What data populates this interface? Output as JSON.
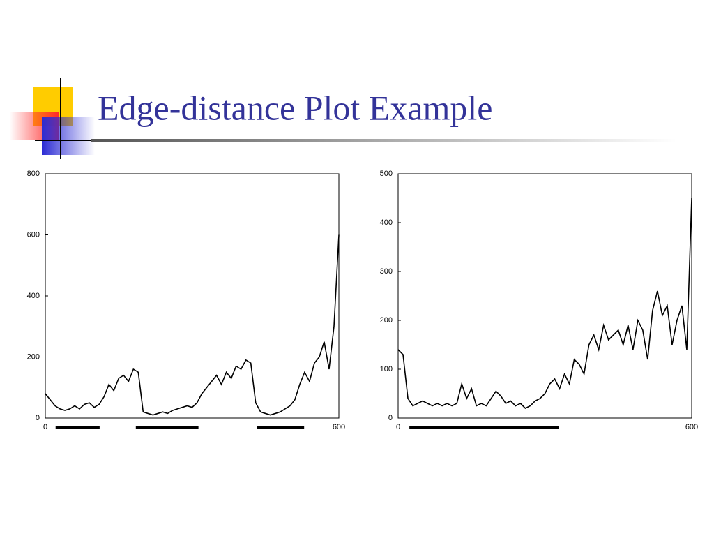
{
  "title": "Edge-distance Plot Example",
  "chart_data": [
    {
      "type": "line",
      "color": "#000000",
      "xlim": [
        0,
        600
      ],
      "xticks": [
        0,
        600
      ],
      "ylim": [
        0,
        800
      ],
      "yticks": [
        0,
        200,
        400,
        600,
        800
      ],
      "x": [
        0,
        10,
        20,
        30,
        40,
        50,
        60,
        70,
        80,
        90,
        100,
        110,
        120,
        130,
        140,
        150,
        160,
        170,
        180,
        190,
        200,
        210,
        220,
        230,
        240,
        250,
        260,
        270,
        280,
        290,
        300,
        310,
        320,
        330,
        340,
        350,
        360,
        370,
        380,
        390,
        400,
        410,
        420,
        430,
        440,
        450,
        460,
        470,
        480,
        490,
        500,
        510,
        520,
        530,
        540,
        550,
        560,
        570,
        580,
        590,
        600
      ],
      "values": [
        80,
        60,
        40,
        30,
        25,
        30,
        40,
        30,
        45,
        50,
        35,
        45,
        70,
        110,
        90,
        130,
        140,
        120,
        160,
        150,
        20,
        15,
        10,
        15,
        20,
        15,
        25,
        30,
        35,
        40,
        35,
        50,
        80,
        100,
        120,
        140,
        110,
        150,
        130,
        170,
        160,
        190,
        180,
        50,
        20,
        15,
        10,
        15,
        20,
        30,
        40,
        60,
        110,
        150,
        120,
        180,
        200,
        250,
        160,
        300,
        600
      ],
      "ranges": [
        [
          21,
          111
        ],
        [
          185,
          313
        ],
        [
          432,
          529
        ]
      ]
    },
    {
      "type": "line",
      "color": "#000000",
      "xlim": [
        0,
        600
      ],
      "xticks": [
        0,
        600
      ],
      "ylim": [
        0,
        500
      ],
      "yticks": [
        0,
        100,
        200,
        300,
        400,
        500
      ],
      "x": [
        0,
        10,
        20,
        30,
        40,
        50,
        60,
        70,
        80,
        90,
        100,
        110,
        120,
        130,
        140,
        150,
        160,
        170,
        180,
        190,
        200,
        210,
        220,
        230,
        240,
        250,
        260,
        270,
        280,
        290,
        300,
        310,
        320,
        330,
        340,
        350,
        360,
        370,
        380,
        390,
        400,
        410,
        420,
        430,
        440,
        450,
        460,
        470,
        480,
        490,
        500,
        510,
        520,
        530,
        540,
        550,
        560,
        570,
        580,
        590,
        600
      ],
      "values": [
        140,
        130,
        40,
        25,
        30,
        35,
        30,
        25,
        30,
        25,
        30,
        25,
        30,
        70,
        40,
        60,
        25,
        30,
        25,
        40,
        55,
        45,
        30,
        35,
        25,
        30,
        20,
        25,
        35,
        40,
        50,
        70,
        80,
        60,
        90,
        70,
        120,
        110,
        90,
        150,
        170,
        140,
        190,
        160,
        170,
        180,
        150,
        190,
        140,
        200,
        180,
        120,
        220,
        260,
        210,
        230,
        150,
        200,
        230,
        140,
        450
      ],
      "ranges": [
        [
          23,
          329
        ]
      ]
    }
  ]
}
